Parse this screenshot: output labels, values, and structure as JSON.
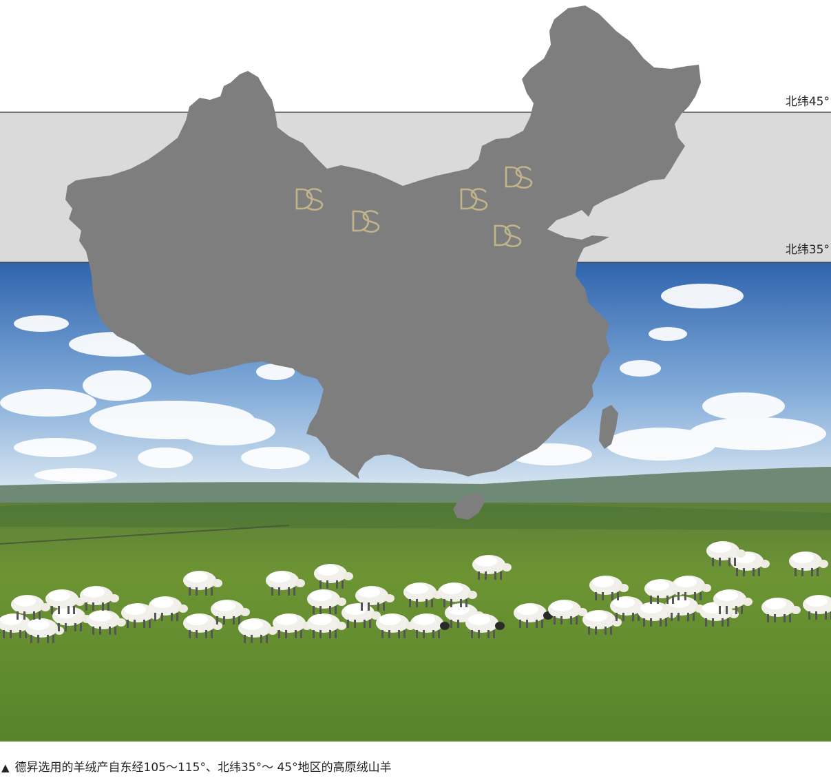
{
  "latitudes": {
    "north45": "北纬45°",
    "north35": "北纬35°"
  },
  "markers": {
    "count": 5,
    "logo_text": "DS",
    "logo_color": "#c2b48a"
  },
  "colors": {
    "map_fill": "#7e7e7e",
    "band_fill": "#dadada",
    "sky_top": "#3b6fb4",
    "grass": "#5f8a2c"
  },
  "caption": {
    "marker": "▲",
    "text": "德昇选用的羊绒产自东经105～115°、北纬35°～ 45°地区的高原绒山羊"
  }
}
